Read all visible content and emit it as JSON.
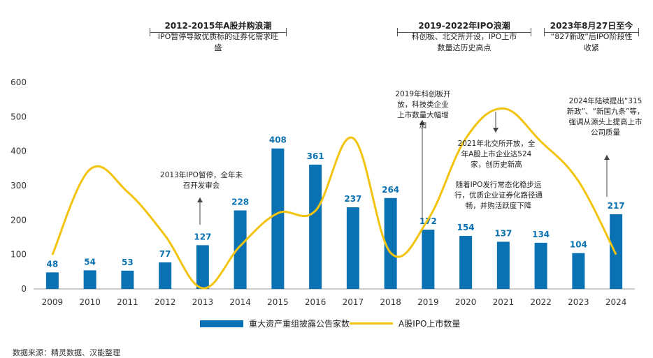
{
  "periods": [
    {
      "title": "2012-2015年A股并购浪潮",
      "desc": "IPO暂停导致优质标的证券化需求旺盛"
    },
    {
      "title": "2019-2022年IPO浪潮",
      "desc": "科创板、北交所开设，IPO上市数量达历史高点"
    },
    {
      "title": "2023年8月27日至今",
      "desc": "“827新政”后IPO阶段性收紧"
    }
  ],
  "annotations": [
    "2013年IPO暂停，全年未召开发审会",
    "2019年科创板开放，科技类企业上市数量大幅增加",
    "2021年北交所开放，全年A股上市企业达524家，创历史新高",
    "随着IPO发行常态化稳步运行，优质企业证券化路径通畅，并购活跃度下降",
    "2024年陆续提出“315新政”、“新国九条”等，强调从源头上提高上市公司质量"
  ],
  "source": "数据来源：精灵数据、汉能整理",
  "colors": {
    "bar": "#0a72b3",
    "line": "#f2c40f",
    "label": "#0a72b3"
  },
  "chart_data": {
    "type": "bar",
    "categories": [
      "2009",
      "2010",
      "2011",
      "2012",
      "2013",
      "2014",
      "2015",
      "2016",
      "2017",
      "2018",
      "2019",
      "2020",
      "2021",
      "2022",
      "2023",
      "2024"
    ],
    "ylim": [
      0,
      600
    ],
    "yticks": [
      0,
      100,
      200,
      300,
      400,
      500,
      600
    ],
    "series": [
      {
        "name": "重大资产重组披露公告家数",
        "type": "bar",
        "values": [
          48,
          54,
          53,
          77,
          127,
          228,
          408,
          361,
          237,
          264,
          172,
          154,
          137,
          134,
          104,
          217
        ]
      },
      {
        "name": "A股IPO上市数量",
        "type": "line",
        "values": [
          99,
          347,
          282,
          155,
          2,
          125,
          220,
          227,
          438,
          105,
          202,
          437,
          524,
          428,
          313,
          100
        ]
      }
    ]
  }
}
